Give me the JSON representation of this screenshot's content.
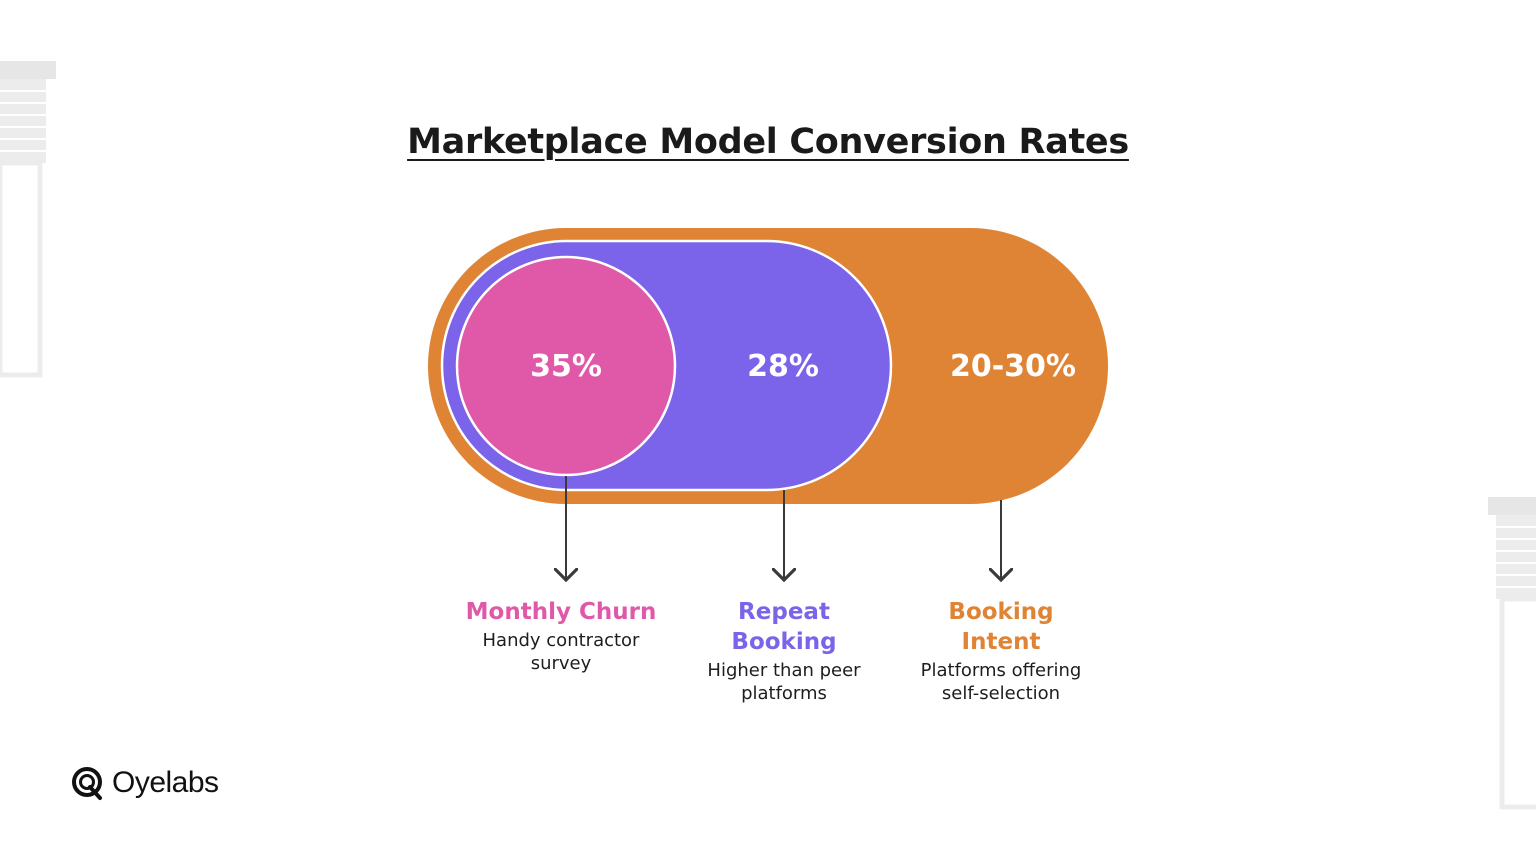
{
  "title": "Marketplace Model Conversion Rates",
  "colors": {
    "churn": "#e059a8",
    "repeat": "#7b64ea",
    "intent": "#de8434",
    "title": "#1a1a1a",
    "arrow": "#3a3a3a"
  },
  "segments": [
    {
      "id": "churn",
      "value": "35%",
      "label": "Monthly Churn",
      "description": "Handy contractor survey"
    },
    {
      "id": "repeat",
      "value": "28%",
      "label": "Repeat Booking",
      "description": "Higher than peer platforms"
    },
    {
      "id": "intent",
      "value": "20-30%",
      "label": "Booking Intent",
      "description": "Platforms offering self-selection"
    }
  ],
  "brand": {
    "name": "Oyelabs",
    "logo_icon": "oyelabs-logo-icon"
  }
}
